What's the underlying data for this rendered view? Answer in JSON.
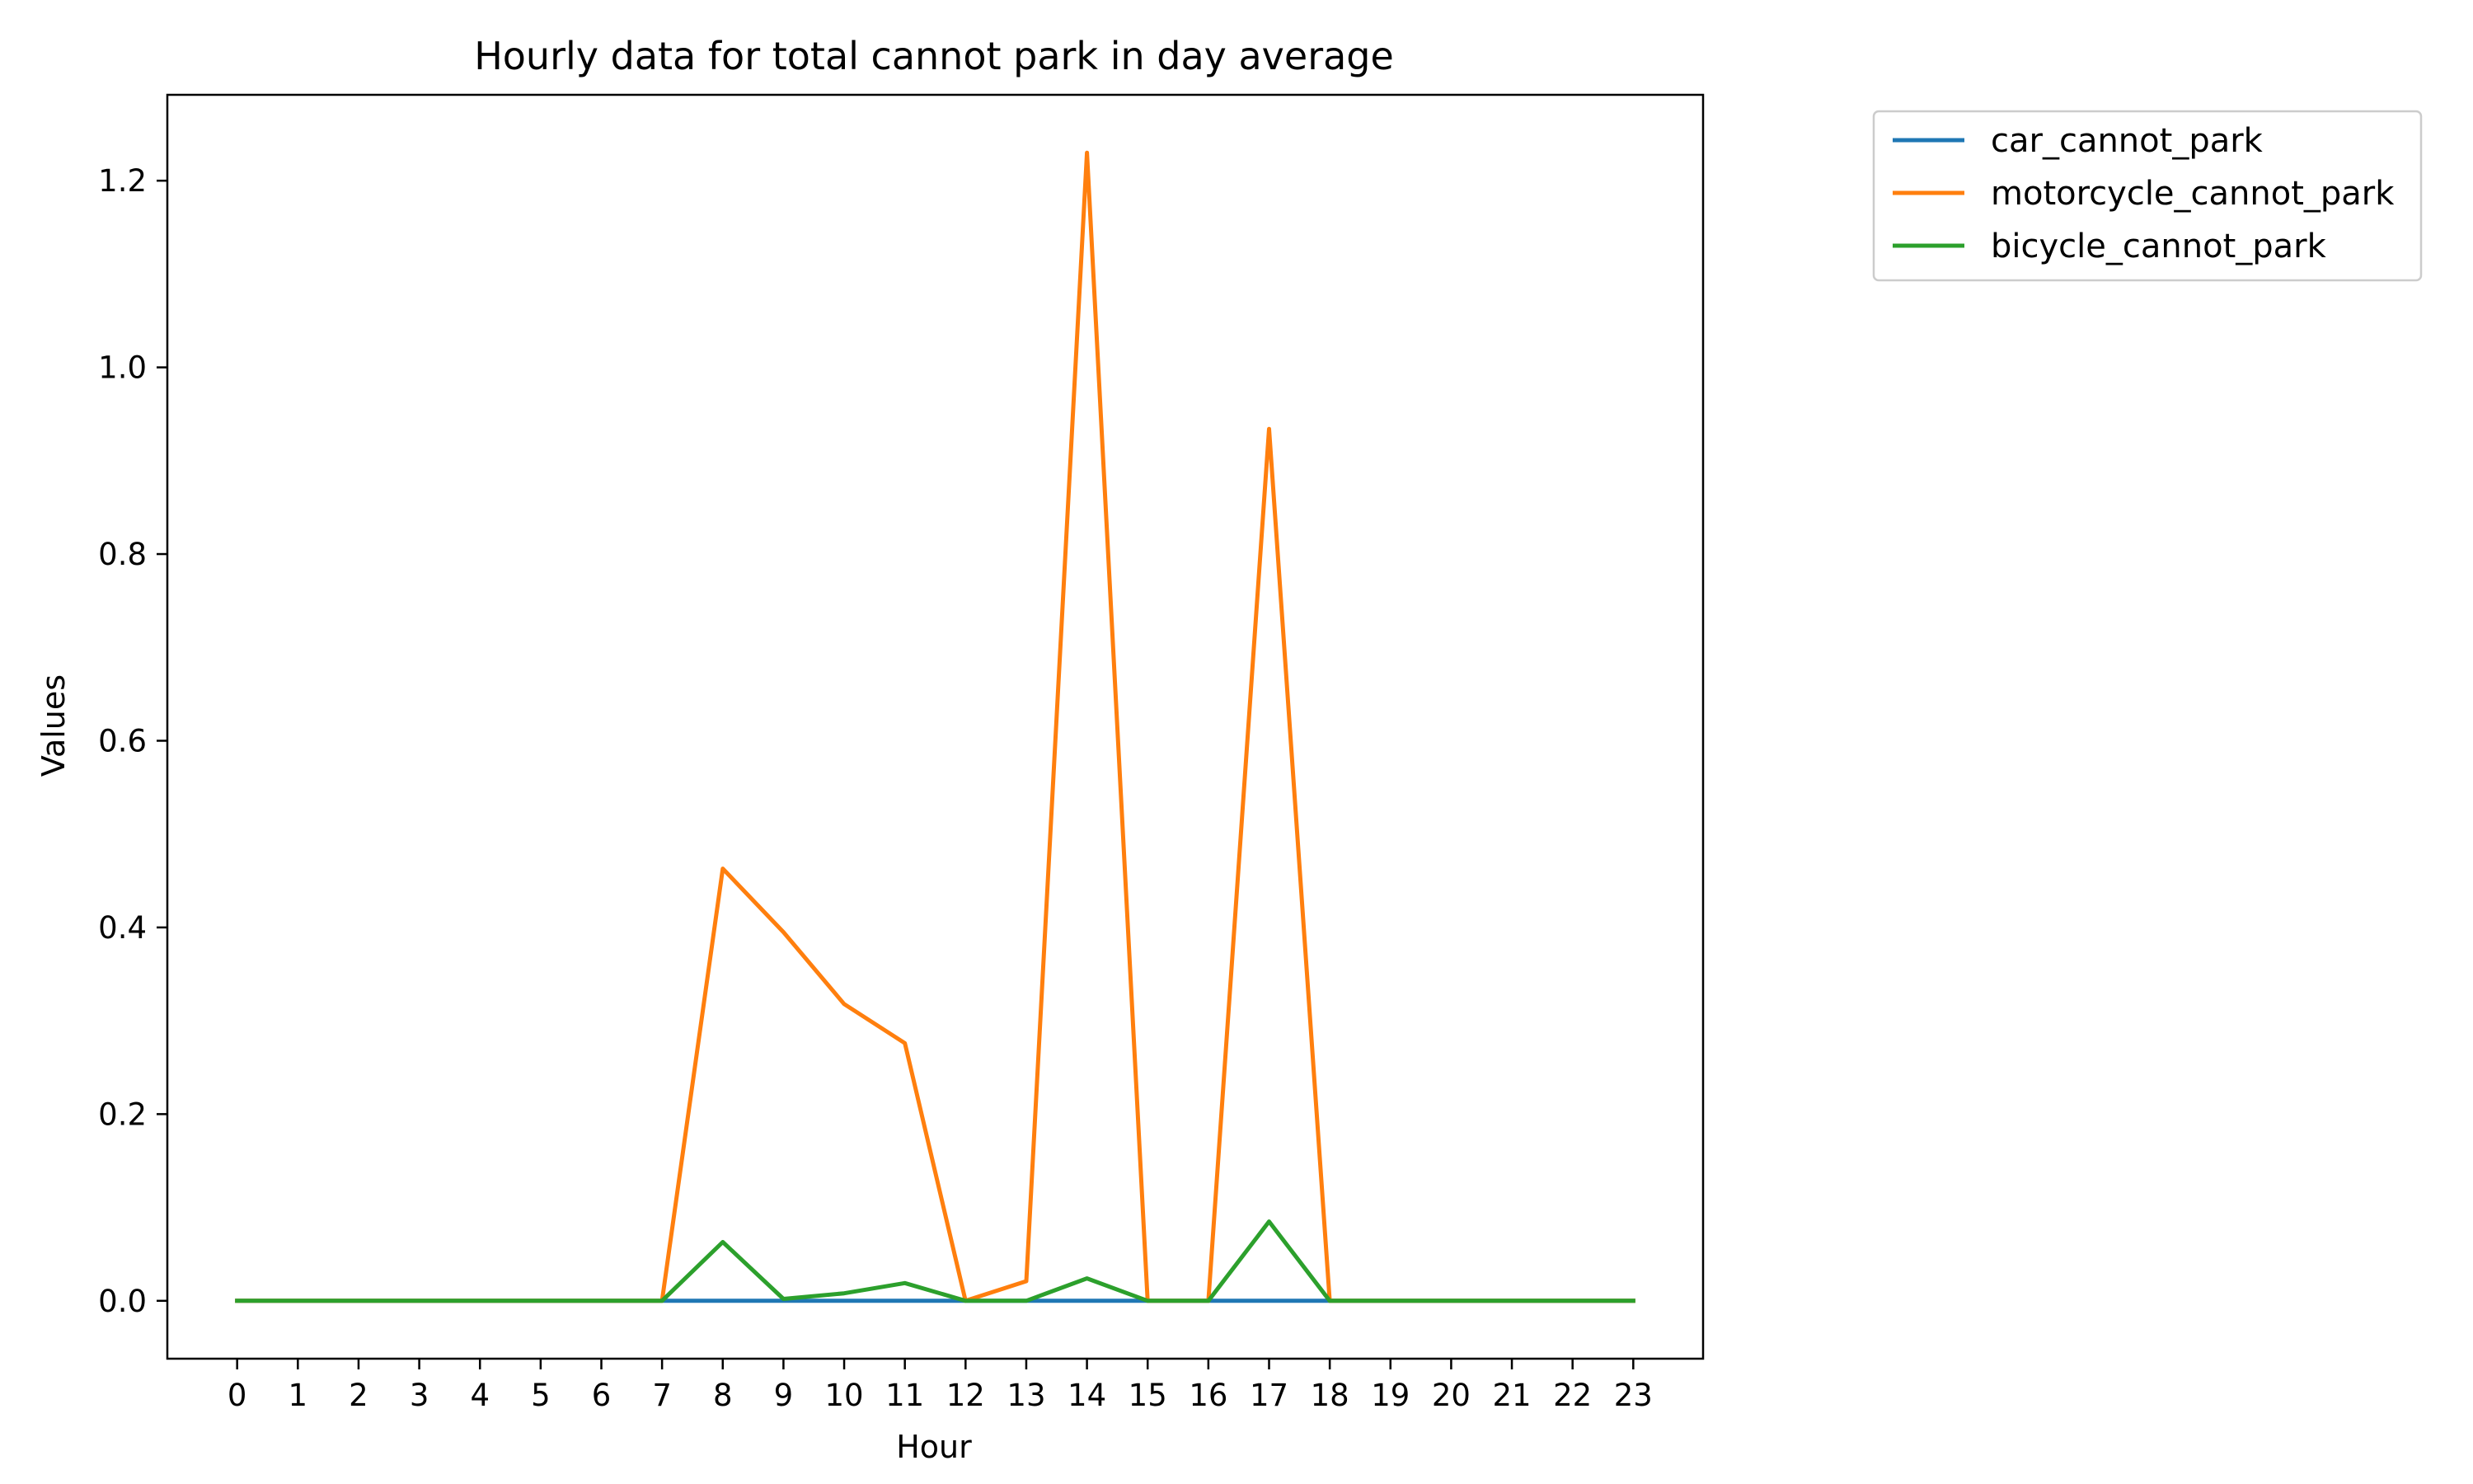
{
  "chart_data": {
    "type": "line",
    "title": "Hourly data for total cannot park in day average",
    "xlabel": "Hour",
    "ylabel": "Values",
    "x": [
      0,
      1,
      2,
      3,
      4,
      5,
      6,
      7,
      8,
      9,
      10,
      11,
      12,
      13,
      14,
      15,
      16,
      17,
      18,
      19,
      20,
      21,
      22,
      23
    ],
    "xlim": [
      -1.15,
      24.15
    ],
    "ylim": [
      -0.062,
      1.292
    ],
    "yticks": [
      0.0,
      0.2,
      0.4,
      0.6,
      0.8,
      1.0,
      1.2
    ],
    "ytick_labels": [
      "0.0",
      "0.2",
      "0.4",
      "0.6",
      "0.8",
      "1.0",
      "1.2"
    ],
    "xtick_labels": [
      "0",
      "1",
      "2",
      "3",
      "4",
      "5",
      "6",
      "7",
      "8",
      "9",
      "10",
      "11",
      "12",
      "13",
      "14",
      "15",
      "16",
      "17",
      "18",
      "19",
      "20",
      "21",
      "22",
      "23"
    ],
    "grid": false,
    "legend_position": "outside-top-right",
    "series": [
      {
        "name": "car_cannot_park",
        "color": "#1f77b4",
        "values": [
          0,
          0,
          0,
          0,
          0,
          0,
          0,
          0,
          0,
          0,
          0,
          0,
          0,
          0,
          0,
          0,
          0,
          0,
          0,
          0,
          0,
          0,
          0,
          0
        ]
      },
      {
        "name": "motorcycle_cannot_park",
        "color": "#ff7f0e",
        "values": [
          0,
          0,
          0,
          0,
          0,
          0,
          0,
          0,
          0.463,
          0.395,
          0.318,
          0.276,
          0,
          0.021,
          1.23,
          0,
          0,
          0.934,
          0,
          0,
          0,
          0,
          0,
          0
        ]
      },
      {
        "name": "bicycle_cannot_park",
        "color": "#2ca02c",
        "values": [
          0,
          0,
          0,
          0,
          0,
          0,
          0,
          0,
          0.063,
          0.002,
          0.008,
          0.019,
          0,
          0,
          0.024,
          0,
          0,
          0.085,
          0,
          0,
          0,
          0,
          0,
          0
        ]
      }
    ]
  }
}
